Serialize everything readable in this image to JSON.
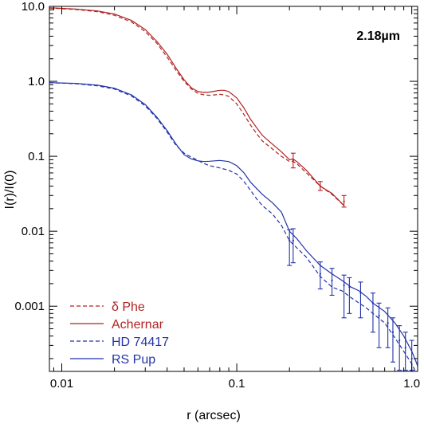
{
  "chart_data": {
    "type": "line",
    "title": "",
    "xlabel": "r (arcsec)",
    "ylabel": "I(r)/I(0)",
    "xscale": "log",
    "yscale": "log",
    "xlim": [
      0.0085,
      1.08
    ],
    "ylim": [
      0.000135,
      10.0
    ],
    "grid": false,
    "legend_placement": "bottom-left",
    "annotation": "2.18µm",
    "x_ticks": [
      {
        "value": 0.01,
        "label": "0.01"
      },
      {
        "value": 0.1,
        "label": "0.1"
      },
      {
        "value": 1.0,
        "label": "1.0"
      }
    ],
    "y_ticks": [
      {
        "value": 10.0,
        "label": "10.0"
      },
      {
        "value": 1.0,
        "label": "1.0"
      },
      {
        "value": 0.1,
        "label": "0.1"
      },
      {
        "value": 0.01,
        "label": "0.01"
      },
      {
        "value": 0.001,
        "label": "0.001"
      }
    ],
    "series": [
      {
        "name": "δ Phe",
        "color": "#b22222",
        "dash": "dashed",
        "points": [
          [
            0.0085,
            9.5
          ],
          [
            0.012,
            9.1
          ],
          [
            0.016,
            8.5
          ],
          [
            0.02,
            7.6
          ],
          [
            0.025,
            6.2
          ],
          [
            0.03,
            4.6
          ],
          [
            0.035,
            3.2
          ],
          [
            0.04,
            2.1
          ],
          [
            0.045,
            1.4
          ],
          [
            0.05,
            1.0
          ],
          [
            0.055,
            0.79
          ],
          [
            0.06,
            0.69
          ],
          [
            0.065,
            0.66
          ],
          [
            0.07,
            0.65
          ],
          [
            0.075,
            0.66
          ],
          [
            0.08,
            0.67
          ],
          [
            0.085,
            0.66
          ],
          [
            0.09,
            0.63
          ],
          [
            0.1,
            0.5
          ],
          [
            0.11,
            0.36
          ],
          [
            0.12,
            0.26
          ],
          [
            0.13,
            0.2
          ],
          [
            0.14,
            0.16
          ],
          [
            0.16,
            0.125
          ],
          [
            0.18,
            0.1
          ],
          [
            0.2,
            0.085
          ],
          [
            0.21,
            0.085
          ],
          [
            0.22,
            0.08
          ],
          [
            0.25,
            0.06
          ],
          [
            0.3,
            0.04
          ],
          [
            0.35,
            0.031
          ],
          [
            0.41,
            0.022
          ]
        ],
        "errorbars": []
      },
      {
        "name": "Achernar",
        "color": "#b22222",
        "dash": "solid",
        "points": [
          [
            0.0085,
            9.6
          ],
          [
            0.012,
            9.2
          ],
          [
            0.016,
            8.7
          ],
          [
            0.02,
            7.9
          ],
          [
            0.025,
            6.5
          ],
          [
            0.03,
            4.9
          ],
          [
            0.035,
            3.4
          ],
          [
            0.04,
            2.3
          ],
          [
            0.045,
            1.5
          ],
          [
            0.05,
            1.05
          ],
          [
            0.055,
            0.82
          ],
          [
            0.06,
            0.73
          ],
          [
            0.065,
            0.71
          ],
          [
            0.07,
            0.72
          ],
          [
            0.075,
            0.74
          ],
          [
            0.08,
            0.76
          ],
          [
            0.085,
            0.76
          ],
          [
            0.09,
            0.73
          ],
          [
            0.1,
            0.6
          ],
          [
            0.11,
            0.44
          ],
          [
            0.12,
            0.31
          ],
          [
            0.13,
            0.24
          ],
          [
            0.14,
            0.19
          ],
          [
            0.16,
            0.145
          ],
          [
            0.18,
            0.115
          ],
          [
            0.2,
            0.09
          ],
          [
            0.21,
            0.092
          ],
          [
            0.22,
            0.085
          ],
          [
            0.25,
            0.065
          ],
          [
            0.3,
            0.04
          ],
          [
            0.35,
            0.032
          ],
          [
            0.41,
            0.022
          ]
        ],
        "errorbars": [
          {
            "x": 0.21,
            "y": 0.088,
            "lo": 0.07,
            "hi": 0.11
          },
          {
            "x": 0.3,
            "y": 0.04,
            "lo": 0.035,
            "hi": 0.046
          },
          {
            "x": 0.41,
            "y": 0.025,
            "lo": 0.021,
            "hi": 0.03
          }
        ]
      },
      {
        "name": "HD 74417",
        "color": "#2233aa",
        "dash": "dashed",
        "points": [
          [
            0.0085,
            0.96
          ],
          [
            0.012,
            0.93
          ],
          [
            0.016,
            0.87
          ],
          [
            0.02,
            0.79
          ],
          [
            0.025,
            0.64
          ],
          [
            0.03,
            0.47
          ],
          [
            0.035,
            0.32
          ],
          [
            0.04,
            0.21
          ],
          [
            0.045,
            0.14
          ],
          [
            0.05,
            0.11
          ],
          [
            0.055,
            0.097
          ],
          [
            0.06,
            0.088
          ],
          [
            0.065,
            0.08
          ],
          [
            0.07,
            0.075
          ],
          [
            0.08,
            0.07
          ],
          [
            0.09,
            0.065
          ],
          [
            0.1,
            0.058
          ],
          [
            0.11,
            0.046
          ],
          [
            0.12,
            0.035
          ],
          [
            0.13,
            0.027
          ],
          [
            0.14,
            0.022
          ],
          [
            0.16,
            0.017
          ],
          [
            0.18,
            0.012
          ],
          [
            0.2,
            0.0075
          ],
          [
            0.25,
            0.0045
          ],
          [
            0.3,
            0.0025
          ],
          [
            0.35,
            0.0018
          ],
          [
            0.4,
            0.0016
          ],
          [
            0.45,
            0.0013
          ],
          [
            0.5,
            0.0011
          ],
          [
            0.55,
            0.00095
          ],
          [
            0.6,
            0.0008
          ],
          [
            0.7,
            0.0006
          ],
          [
            0.8,
            0.00038
          ],
          [
            0.9,
            0.00025
          ],
          [
            1.0,
            0.00017
          ],
          [
            1.05,
            0.000135
          ]
        ],
        "errorbars": []
      },
      {
        "name": "RS Pup",
        "color": "#2233aa",
        "dash": "solid",
        "points": [
          [
            0.0085,
            0.96
          ],
          [
            0.012,
            0.94
          ],
          [
            0.016,
            0.89
          ],
          [
            0.02,
            0.81
          ],
          [
            0.025,
            0.66
          ],
          [
            0.03,
            0.49
          ],
          [
            0.035,
            0.33
          ],
          [
            0.04,
            0.22
          ],
          [
            0.045,
            0.145
          ],
          [
            0.05,
            0.105
          ],
          [
            0.055,
            0.092
          ],
          [
            0.06,
            0.087
          ],
          [
            0.065,
            0.085
          ],
          [
            0.07,
            0.086
          ],
          [
            0.08,
            0.088
          ],
          [
            0.09,
            0.085
          ],
          [
            0.1,
            0.075
          ],
          [
            0.11,
            0.06
          ],
          [
            0.12,
            0.045
          ],
          [
            0.13,
            0.037
          ],
          [
            0.14,
            0.031
          ],
          [
            0.16,
            0.024
          ],
          [
            0.18,
            0.018
          ],
          [
            0.2,
            0.01
          ],
          [
            0.22,
            0.008
          ],
          [
            0.25,
            0.0055
          ],
          [
            0.3,
            0.0035
          ],
          [
            0.35,
            0.0027
          ],
          [
            0.4,
            0.0022
          ],
          [
            0.45,
            0.0018
          ],
          [
            0.5,
            0.0016
          ],
          [
            0.55,
            0.00135
          ],
          [
            0.6,
            0.0011
          ],
          [
            0.7,
            0.00085
          ],
          [
            0.8,
            0.0006
          ],
          [
            0.9,
            0.0004
          ],
          [
            1.0,
            0.00025
          ],
          [
            1.05,
            0.00019
          ],
          [
            1.08,
            0.00016
          ]
        ],
        "errorbars": [
          {
            "x": 0.2,
            "y": 0.0075,
            "lo": 0.0035,
            "hi": 0.0105
          },
          {
            "x": 0.21,
            "y": 0.0075,
            "lo": 0.0038,
            "hi": 0.0108
          },
          {
            "x": 0.3,
            "y": 0.0027,
            "lo": 0.0017,
            "hi": 0.0039
          },
          {
            "x": 0.35,
            "y": 0.0022,
            "lo": 0.0014,
            "hi": 0.0032
          },
          {
            "x": 0.41,
            "y": 0.0019,
            "lo": 0.0007,
            "hi": 0.0026
          },
          {
            "x": 0.44,
            "y": 0.0018,
            "lo": 0.0008,
            "hi": 0.0024
          },
          {
            "x": 0.51,
            "y": 0.0015,
            "lo": 0.0007,
            "hi": 0.0021
          },
          {
            "x": 0.6,
            "y": 0.0011,
            "lo": 0.00045,
            "hi": 0.0015
          },
          {
            "x": 0.65,
            "y": 0.00075,
            "lo": 0.00028,
            "hi": 0.0011
          },
          {
            "x": 0.73,
            "y": 0.0006,
            "lo": 0.00028,
            "hi": 0.00095
          },
          {
            "x": 0.78,
            "y": 0.00045,
            "lo": 0.00018,
            "hi": 0.0007
          },
          {
            "x": 0.85,
            "y": 0.00035,
            "lo": 0.00014,
            "hi": 0.00055
          },
          {
            "x": 0.92,
            "y": 0.00028,
            "lo": 0.00014,
            "hi": 0.00045
          },
          {
            "x": 1.0,
            "y": 0.0002,
            "lo": 0.00014,
            "hi": 0.00035
          }
        ]
      }
    ]
  }
}
